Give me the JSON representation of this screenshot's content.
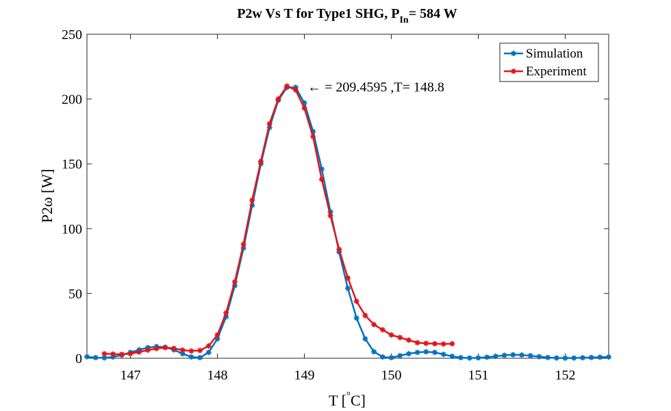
{
  "chart_data": {
    "type": "line",
    "title": {
      "main": "P2w Vs T for Type1 SHG, P",
      "subscript": "In",
      "suffix": "= 584 W"
    },
    "xlabel": {
      "prefix": "T [",
      "superscript": "°",
      "suffix": "C]"
    },
    "ylabel": "P2ω [W]",
    "xlim": [
      146.5,
      152.5
    ],
    "ylim": [
      0,
      250
    ],
    "xticks": [
      147,
      148,
      149,
      150,
      151,
      152
    ],
    "yticks": [
      0,
      50,
      100,
      150,
      200,
      250
    ],
    "grid": false,
    "legend_position": "top-right",
    "annotation": {
      "text": "← = 209.4595 ,T= 148.8",
      "x": 148.8,
      "y": 209.4595
    },
    "series": [
      {
        "name": "Simulation",
        "color": "#0072BD",
        "marker": "asterisk",
        "x": [
          146.5,
          146.6,
          146.7,
          146.8,
          146.9,
          147.0,
          147.1,
          147.2,
          147.3,
          147.4,
          147.5,
          147.6,
          147.7,
          147.8,
          147.9,
          148.0,
          148.1,
          148.2,
          148.3,
          148.4,
          148.5,
          148.6,
          148.7,
          148.8,
          148.9,
          149.0,
          149.1,
          149.2,
          149.3,
          149.4,
          149.5,
          149.6,
          149.7,
          149.8,
          149.9,
          150.0,
          150.1,
          150.2,
          150.3,
          150.4,
          150.5,
          150.6,
          150.7,
          150.8,
          150.9,
          151.0,
          151.1,
          151.2,
          151.3,
          151.4,
          151.5,
          151.6,
          151.7,
          151.8,
          151.9,
          152.0,
          152.1,
          152.2,
          152.3,
          152.4,
          152.5
        ],
        "y": [
          1.2,
          0.5,
          0.3,
          1.0,
          2.5,
          4.5,
          6.5,
          8.2,
          9.0,
          8.5,
          6.5,
          3.5,
          1.0,
          0.5,
          4.5,
          15,
          32,
          56,
          85,
          118,
          150,
          178,
          199,
          209,
          209,
          197,
          175,
          146,
          113,
          82,
          54,
          31,
          15,
          5,
          1.0,
          0.5,
          2.0,
          3.5,
          4.5,
          5.0,
          4.5,
          3.0,
          1.5,
          0.5,
          0.2,
          0.3,
          0.8,
          1.5,
          2.3,
          2.7,
          2.5,
          2.0,
          1.2,
          0.6,
          0.2,
          0.1,
          0.2,
          0.4,
          0.6,
          0.8,
          1.0
        ]
      },
      {
        "name": "Experiment",
        "color": "#E0161B",
        "marker": "asterisk",
        "x": [
          146.7,
          146.8,
          146.9,
          147.0,
          147.1,
          147.2,
          147.3,
          147.4,
          147.5,
          147.6,
          147.7,
          147.8,
          147.9,
          148.0,
          148.1,
          148.2,
          148.3,
          148.4,
          148.5,
          148.6,
          148.7,
          148.8,
          148.9,
          149.0,
          149.1,
          149.2,
          149.3,
          149.4,
          149.5,
          149.6,
          149.7,
          149.8,
          149.9,
          150.0,
          150.1,
          150.2,
          150.3,
          150.4,
          150.5,
          150.6,
          150.7
        ],
        "y": [
          3.5,
          3.2,
          3.0,
          3.5,
          4.8,
          6.3,
          7.5,
          8.2,
          7.6,
          6.3,
          5.6,
          6.0,
          9.5,
          18,
          35,
          59,
          88,
          122,
          152,
          181,
          200,
          210,
          207,
          193,
          171,
          138,
          110,
          84,
          62,
          44,
          33,
          26,
          22,
          18,
          16,
          14,
          12,
          11.5,
          11.2,
          11.0,
          11.2
        ]
      }
    ]
  }
}
